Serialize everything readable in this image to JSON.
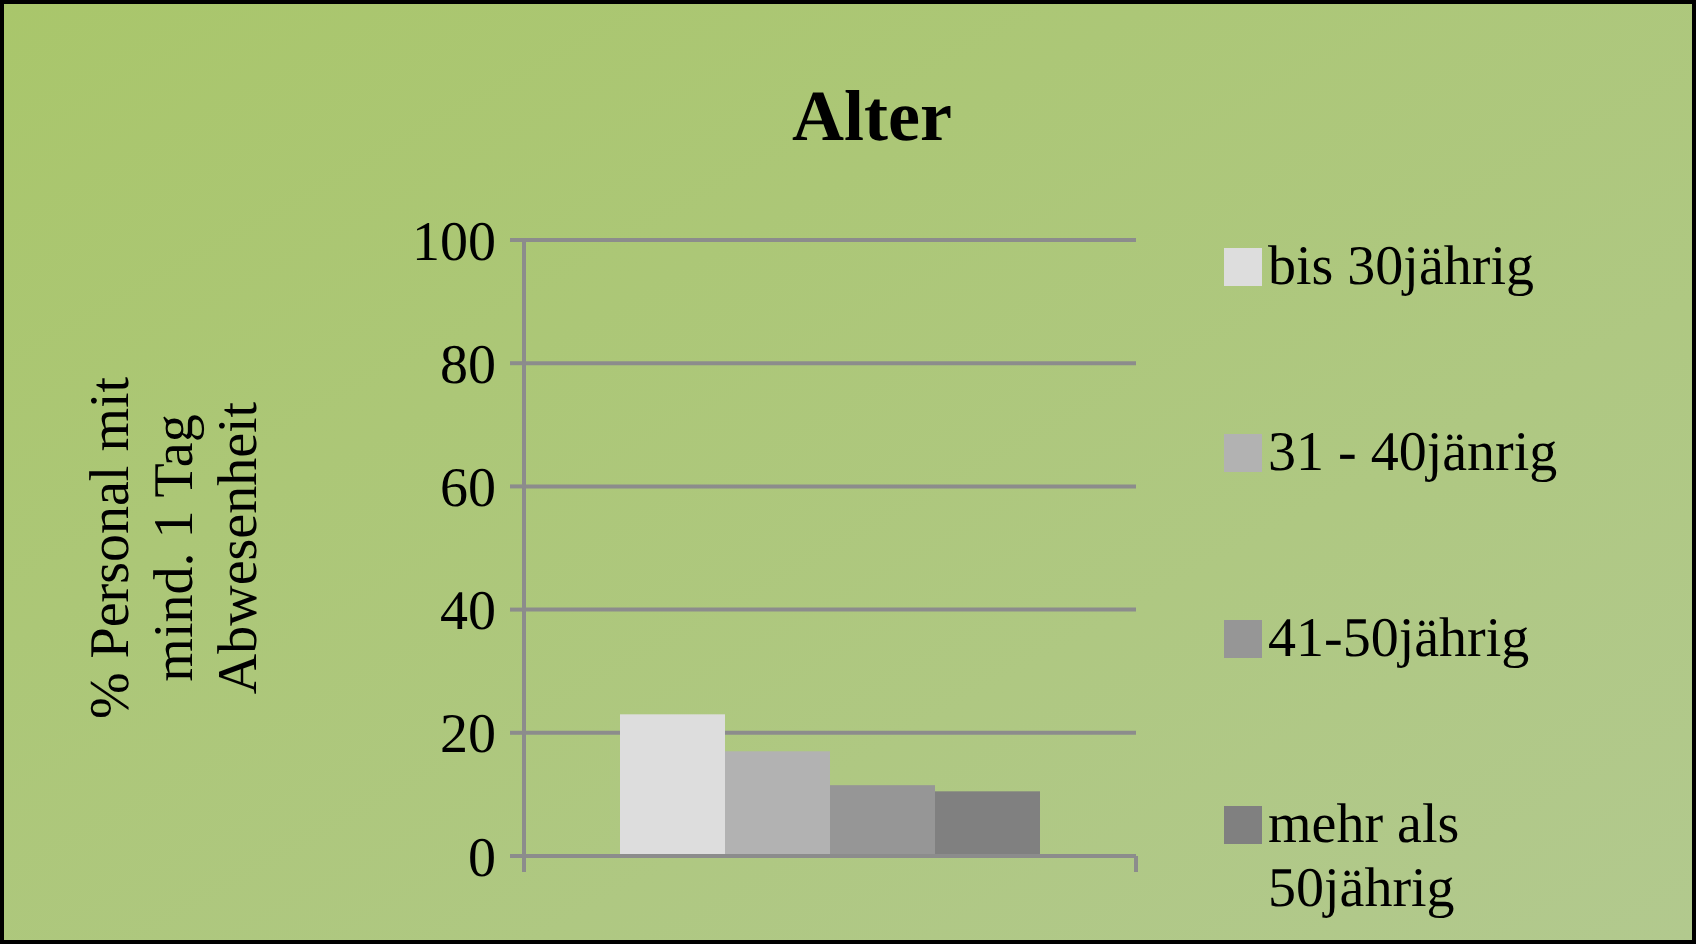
{
  "chart_data": {
    "type": "bar",
    "title": "Alter",
    "ylabel": "% Personal mit mind. 1 Tag Abwesenheit",
    "categories": [
      null
    ],
    "series": [
      {
        "name": "bis 30jährig",
        "color": "#dddddd",
        "values": [
          23
        ]
      },
      {
        "name": "31 - 40jänrig",
        "color": "#b2b2b2",
        "values": [
          17
        ]
      },
      {
        "name": "41-50jährig",
        "color": "#969696",
        "values": [
          11.5
        ]
      },
      {
        "name": "mehr als 50jährig",
        "color": "#808080",
        "values": [
          10.5
        ]
      }
    ],
    "ylim": [
      0,
      100
    ],
    "yticks": [
      0,
      20,
      40,
      60,
      80,
      100
    ],
    "grid": "y",
    "legend": "right"
  }
}
